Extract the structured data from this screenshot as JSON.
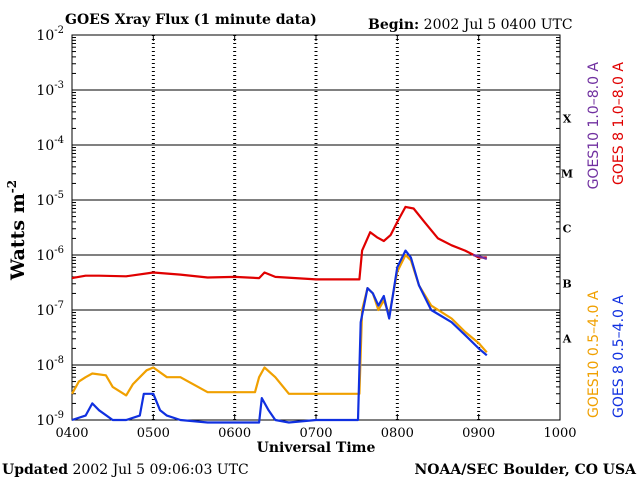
{
  "header": {
    "title": "GOES Xray Flux (1 minute data)",
    "begin_label": "Begin:",
    "begin_value": "2002 Jul 5 0400 UTC"
  },
  "footer": {
    "updated_label": "Updated",
    "updated_value": "2002 Jul  5 09:06:03 UTC",
    "source": "NOAA/SEC Boulder, CO USA"
  },
  "chart_data": {
    "type": "line",
    "title": "GOES Xray Flux (1 minute data)",
    "xlabel": "Universal Time",
    "ylabel": "Watts m",
    "ylabel_sup": "-2",
    "xlim": [
      0,
      360
    ],
    "x_unit": "minutes after 0400 UTC",
    "ylim_exp": [
      -9,
      -2
    ],
    "yscale": "log",
    "xticks": [
      {
        "v": 0,
        "label": "0400"
      },
      {
        "v": 60,
        "label": "0500"
      },
      {
        "v": 120,
        "label": "0600"
      },
      {
        "v": 180,
        "label": "0700"
      },
      {
        "v": 240,
        "label": "0800"
      },
      {
        "v": 300,
        "label": "0900"
      },
      {
        "v": 360,
        "label": "1000"
      }
    ],
    "yticks": [
      {
        "e": -2,
        "base": "10",
        "exp": "-2"
      },
      {
        "e": -3,
        "base": "10",
        "exp": "-3"
      },
      {
        "e": -4,
        "base": "10",
        "exp": "-4"
      },
      {
        "e": -5,
        "base": "10",
        "exp": "-5"
      },
      {
        "e": -6,
        "base": "10",
        "exp": "-6"
      },
      {
        "e": -7,
        "base": "10",
        "exp": "-7"
      },
      {
        "e": -8,
        "base": "10",
        "exp": "-8"
      },
      {
        "e": -9,
        "base": "10",
        "exp": "-9"
      }
    ],
    "flare_classes": [
      {
        "label": "X",
        "e": -3.5
      },
      {
        "label": "M",
        "e": -4.5
      },
      {
        "label": "C",
        "e": -5.5
      },
      {
        "label": "B",
        "e": -6.5
      },
      {
        "label": "A",
        "e": -7.5
      }
    ],
    "grid_horizontal": true,
    "legend": [
      {
        "label": "GOES10 1.0–8.0 A",
        "color": "#7030A0",
        "group": "top"
      },
      {
        "label": "GOES 8 1.0–8.0 A",
        "color": "#E00000",
        "group": "top"
      },
      {
        "label": "GOES10 0.5–4.0 A",
        "color": "#F0A000",
        "group": "bottom"
      },
      {
        "label": "GOES 8 0.5–4.0 A",
        "color": "#1030E0",
        "group": "bottom"
      }
    ],
    "series": [
      {
        "name": "GOES 8 1.0–8.0 A",
        "color": "#E00000",
        "points": [
          [
            0,
            3.8e-07
          ],
          [
            10,
            4.2e-07
          ],
          [
            20,
            4.2e-07
          ],
          [
            40,
            4.1e-07
          ],
          [
            60,
            4.8e-07
          ],
          [
            80,
            4.4e-07
          ],
          [
            100,
            3.9e-07
          ],
          [
            120,
            4e-07
          ],
          [
            138,
            3.8e-07
          ],
          [
            142,
            4.8e-07
          ],
          [
            150,
            4e-07
          ],
          [
            180,
            3.6e-07
          ],
          [
            200,
            3.6e-07
          ],
          [
            212,
            3.6e-07
          ],
          [
            214,
            1.2e-06
          ],
          [
            220,
            2.6e-06
          ],
          [
            225,
            2.1e-06
          ],
          [
            230,
            1.8e-06
          ],
          [
            235,
            2.3e-06
          ],
          [
            240,
            4e-06
          ],
          [
            246,
            7.5e-06
          ],
          [
            252,
            7e-06
          ],
          [
            260,
            4e-06
          ],
          [
            270,
            2e-06
          ],
          [
            280,
            1.5e-06
          ],
          [
            290,
            1.2e-06
          ],
          [
            300,
            9e-07
          ],
          [
            306,
            9e-07
          ]
        ]
      },
      {
        "name": "GOES10 1.0–8.0 A",
        "color": "#7030A0",
        "points": [
          [
            296,
            1e-06
          ],
          [
            300,
            9.5e-07
          ],
          [
            306,
            8.5e-07
          ]
        ]
      },
      {
        "name": "GOES10 0.5–4.0 A",
        "color": "#F0A000",
        "points": [
          [
            0,
            3e-09
          ],
          [
            5,
            5e-09
          ],
          [
            10,
            6e-09
          ],
          [
            15,
            7e-09
          ],
          [
            25,
            6.5e-09
          ],
          [
            30,
            4e-09
          ],
          [
            40,
            2.8e-09
          ],
          [
            45,
            4.5e-09
          ],
          [
            55,
            8e-09
          ],
          [
            60,
            9e-09
          ],
          [
            70,
            6e-09
          ],
          [
            80,
            6e-09
          ],
          [
            100,
            3.2e-09
          ],
          [
            120,
            3.2e-09
          ],
          [
            135,
            3.2e-09
          ],
          [
            138,
            6e-09
          ],
          [
            142,
            9e-09
          ],
          [
            150,
            6e-09
          ],
          [
            160,
            3e-09
          ],
          [
            180,
            3e-09
          ],
          [
            212,
            3e-09
          ],
          [
            214,
            1e-07
          ],
          [
            218,
            2.5e-07
          ],
          [
            222,
            2e-07
          ],
          [
            226,
            1e-07
          ],
          [
            230,
            1.5e-07
          ],
          [
            234,
            8e-08
          ],
          [
            240,
            5e-07
          ],
          [
            246,
            1e-06
          ],
          [
            250,
            8e-07
          ],
          [
            256,
            2.8e-07
          ],
          [
            265,
            1.2e-07
          ],
          [
            280,
            7e-08
          ],
          [
            290,
            4e-08
          ],
          [
            300,
            2.5e-08
          ],
          [
            306,
            1.7e-08
          ]
        ]
      },
      {
        "name": "GOES 8 0.5–4.0 A",
        "color": "#1030E0",
        "points": [
          [
            0,
            1e-09
          ],
          [
            10,
            1.2e-09
          ],
          [
            15,
            2e-09
          ],
          [
            20,
            1.5e-09
          ],
          [
            30,
            1e-09
          ],
          [
            40,
            1e-09
          ],
          [
            50,
            1.2e-09
          ],
          [
            53,
            3e-09
          ],
          [
            60,
            3e-09
          ],
          [
            65,
            1.5e-09
          ],
          [
            70,
            1.2e-09
          ],
          [
            80,
            1e-09
          ],
          [
            100,
            9e-10
          ],
          [
            120,
            9e-10
          ],
          [
            138,
            9e-10
          ],
          [
            140,
            2.5e-09
          ],
          [
            145,
            1.5e-09
          ],
          [
            150,
            1e-09
          ],
          [
            160,
            9e-10
          ],
          [
            180,
            1e-09
          ],
          [
            200,
            1e-09
          ],
          [
            211,
            1e-09
          ],
          [
            213,
            6e-08
          ],
          [
            218,
            2.5e-07
          ],
          [
            222,
            2e-07
          ],
          [
            226,
            1.2e-07
          ],
          [
            230,
            1.8e-07
          ],
          [
            234,
            7e-08
          ],
          [
            240,
            6e-07
          ],
          [
            246,
            1.2e-06
          ],
          [
            250,
            9e-07
          ],
          [
            256,
            2.8e-07
          ],
          [
            265,
            1e-07
          ],
          [
            280,
            6e-08
          ],
          [
            290,
            3.5e-08
          ],
          [
            300,
            2e-08
          ],
          [
            306,
            1.5e-08
          ]
        ]
      }
    ]
  }
}
